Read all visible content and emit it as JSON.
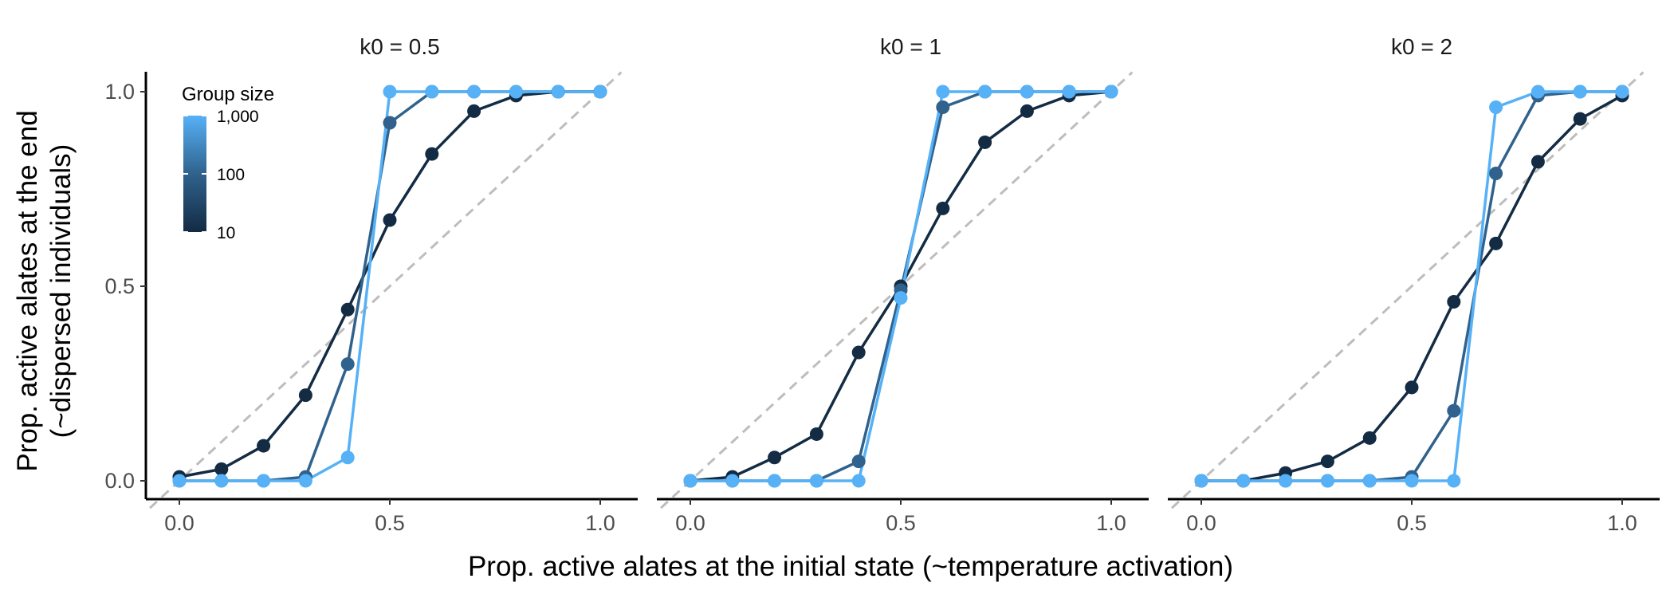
{
  "figure": {
    "xlabel": "Prop. active alates at the initial state (~temperature activation)",
    "ylabel_line1": "Prop. active alates at the end",
    "ylabel_line2": "(~dispersed individuals)"
  },
  "legend": {
    "title": "Group size",
    "ticks": [
      "1,000",
      "100",
      "10"
    ],
    "placement": "top-left of first panel"
  },
  "colors": {
    "size_10": "#132b43",
    "size_100": "#30628d",
    "size_1000": "#56b1f7",
    "diagonal": "#bdbdbd",
    "axis": "#000000",
    "tick_label": "#4d4d4d"
  },
  "chart_data": [
    {
      "type": "line",
      "title": "k0 = 0.5",
      "xlim": [
        0,
        1
      ],
      "ylim": [
        0,
        1
      ],
      "xticks": [
        "0.0",
        "0.5",
        "1.0"
      ],
      "yticks": [
        "0.0",
        "0.5",
        "1.0"
      ],
      "grid": false,
      "reference_line": "y = x (dashed)",
      "series": [
        {
          "group_size": 10,
          "x": [
            0.0,
            0.1,
            0.2,
            0.3,
            0.4,
            0.5,
            0.6,
            0.7,
            0.8,
            0.9,
            1.0
          ],
          "y": [
            0.01,
            0.03,
            0.09,
            0.22,
            0.44,
            0.67,
            0.84,
            0.95,
            0.99,
            1.0,
            1.0
          ]
        },
        {
          "group_size": 100,
          "x": [
            0.0,
            0.1,
            0.2,
            0.3,
            0.4,
            0.5,
            0.6,
            0.7,
            0.8,
            0.9,
            1.0
          ],
          "y": [
            0.0,
            0.0,
            0.0,
            0.01,
            0.3,
            0.92,
            1.0,
            1.0,
            1.0,
            1.0,
            1.0
          ]
        },
        {
          "group_size": 1000,
          "x": [
            0.0,
            0.1,
            0.2,
            0.3,
            0.4,
            0.5,
            0.6,
            0.7,
            0.8,
            0.9,
            1.0
          ],
          "y": [
            0.0,
            0.0,
            0.0,
            0.0,
            0.06,
            1.0,
            1.0,
            1.0,
            1.0,
            1.0,
            1.0
          ]
        }
      ]
    },
    {
      "type": "line",
      "title": "k0 = 1",
      "xlim": [
        0,
        1
      ],
      "ylim": [
        0,
        1
      ],
      "xticks": [
        "0.0",
        "0.5",
        "1.0"
      ],
      "yticks": [
        "0.0",
        "0.5",
        "1.0"
      ],
      "grid": false,
      "reference_line": "y = x (dashed)",
      "series": [
        {
          "group_size": 10,
          "x": [
            0.0,
            0.1,
            0.2,
            0.3,
            0.4,
            0.5,
            0.6,
            0.7,
            0.8,
            0.9,
            1.0
          ],
          "y": [
            0.0,
            0.01,
            0.06,
            0.12,
            0.33,
            0.5,
            0.7,
            0.87,
            0.95,
            0.99,
            1.0
          ]
        },
        {
          "group_size": 100,
          "x": [
            0.0,
            0.1,
            0.2,
            0.3,
            0.4,
            0.5,
            0.6,
            0.7,
            0.8,
            0.9,
            1.0
          ],
          "y": [
            0.0,
            0.0,
            0.0,
            0.0,
            0.05,
            0.49,
            0.96,
            1.0,
            1.0,
            1.0,
            1.0
          ]
        },
        {
          "group_size": 1000,
          "x": [
            0.0,
            0.1,
            0.2,
            0.3,
            0.4,
            0.5,
            0.6,
            0.7,
            0.8,
            0.9,
            1.0
          ],
          "y": [
            0.0,
            0.0,
            0.0,
            0.0,
            0.0,
            0.47,
            1.0,
            1.0,
            1.0,
            1.0,
            1.0
          ]
        }
      ]
    },
    {
      "type": "line",
      "title": "k0 = 2",
      "xlim": [
        0,
        1
      ],
      "ylim": [
        0,
        1
      ],
      "xticks": [
        "0.0",
        "0.5",
        "1.0"
      ],
      "yticks": [
        "0.0",
        "0.5",
        "1.0"
      ],
      "grid": false,
      "reference_line": "y = x (dashed)",
      "series": [
        {
          "group_size": 10,
          "x": [
            0.0,
            0.1,
            0.2,
            0.3,
            0.4,
            0.5,
            0.6,
            0.7,
            0.8,
            0.9,
            1.0
          ],
          "y": [
            0.0,
            0.0,
            0.02,
            0.05,
            0.11,
            0.24,
            0.46,
            0.61,
            0.82,
            0.93,
            0.99
          ]
        },
        {
          "group_size": 100,
          "x": [
            0.0,
            0.1,
            0.2,
            0.3,
            0.4,
            0.5,
            0.6,
            0.7,
            0.8,
            0.9,
            1.0
          ],
          "y": [
            0.0,
            0.0,
            0.0,
            0.0,
            0.0,
            0.01,
            0.18,
            0.79,
            0.99,
            1.0,
            1.0
          ]
        },
        {
          "group_size": 1000,
          "x": [
            0.0,
            0.1,
            0.2,
            0.3,
            0.4,
            0.5,
            0.6,
            0.7,
            0.8,
            0.9,
            1.0
          ],
          "y": [
            0.0,
            0.0,
            0.0,
            0.0,
            0.0,
            0.0,
            0.0,
            0.96,
            1.0,
            1.0,
            1.0
          ]
        }
      ]
    }
  ]
}
